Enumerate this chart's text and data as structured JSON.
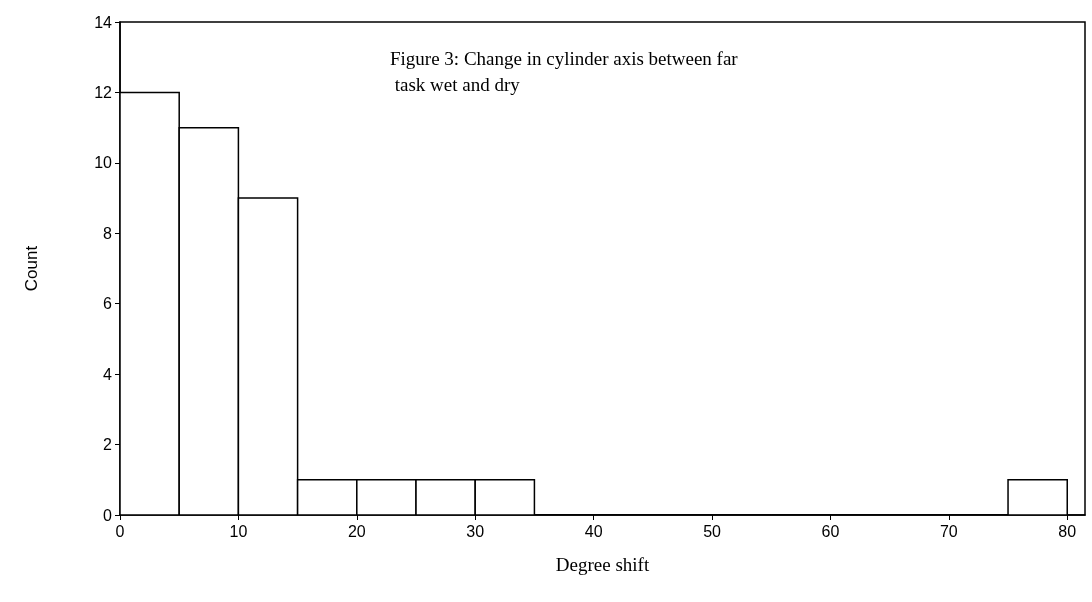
{
  "chart_data": {
    "type": "histogram",
    "title": "Figure 3: Change in cylinder axis between far task wet and dry",
    "xlabel": "Degree shift",
    "ylabel": "Count",
    "bins": [
      0,
      5,
      10,
      15,
      20,
      25,
      30,
      35,
      40,
      45,
      50,
      55,
      60,
      65,
      70,
      75,
      80
    ],
    "values": [
      12,
      11,
      9,
      1,
      1,
      1,
      1,
      0,
      0,
      0,
      0,
      0,
      0,
      0,
      0,
      1
    ],
    "color": "#ffffff",
    "xlim": [
      0,
      81.5
    ],
    "xticks": [
      0,
      10,
      20,
      30,
      40,
      50,
      60,
      70,
      80
    ],
    "ylim": [
      0,
      14
    ],
    "yticks": [
      0,
      2,
      4,
      6,
      8,
      10,
      12,
      14
    ]
  }
}
